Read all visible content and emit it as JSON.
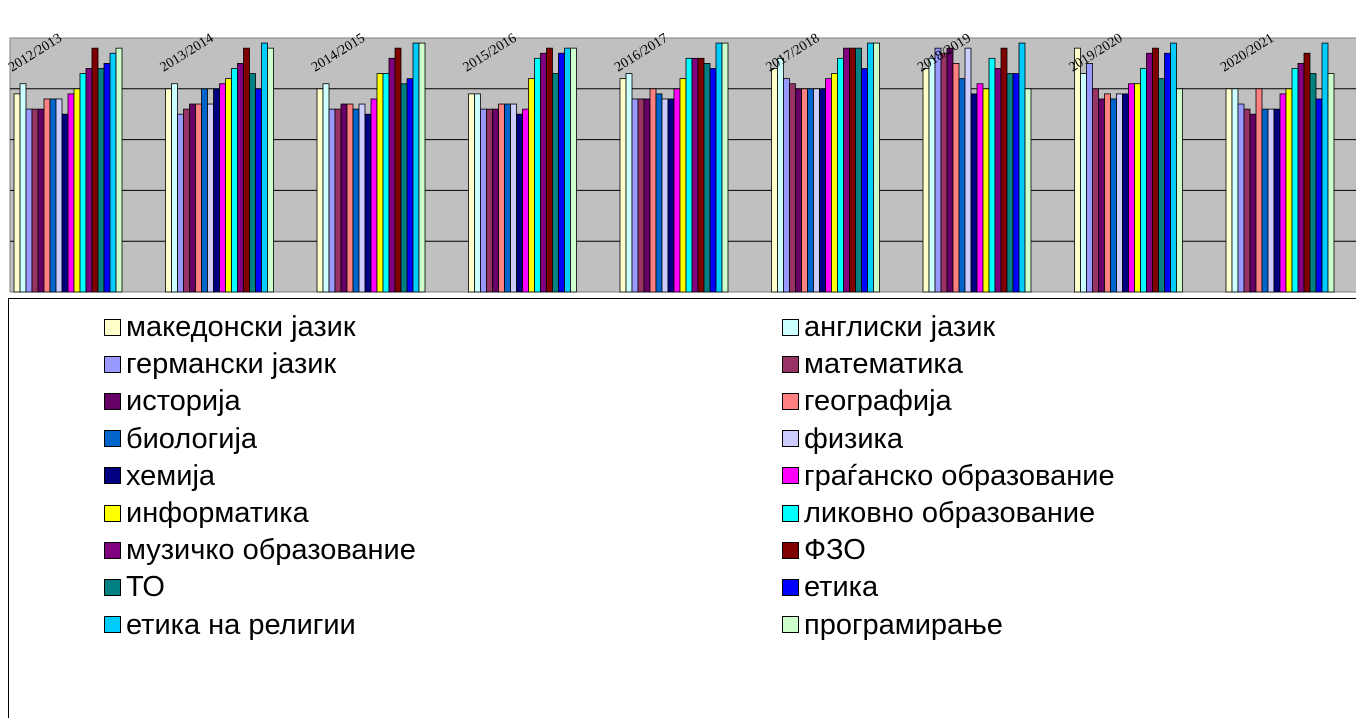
{
  "chart_data": {
    "type": "bar",
    "title": "",
    "xlabel": "",
    "ylabel": "",
    "ylim": [
      0,
      5
    ],
    "grid": true,
    "legend_position": "bottom",
    "plot_background": "#c0c0c0",
    "categories": [
      "2012/2013",
      "2013/2014",
      "2014/2015",
      "2015/2016",
      "2016/2017",
      "2017/2018",
      "2018/2019",
      "2019/2020",
      "2020/2021"
    ],
    "series": [
      {
        "name": "македонски јазик",
        "color": "#ffffcc",
        "values": [
          3.9,
          4.0,
          4.0,
          3.9,
          4.2,
          4.4,
          4.4,
          4.8,
          4.0
        ]
      },
      {
        "name": "англиски јазик",
        "color": "#ccffff",
        "values": [
          4.1,
          4.1,
          4.1,
          3.9,
          4.3,
          4.6,
          4.6,
          4.3,
          4.0
        ]
      },
      {
        "name": "германски јазик",
        "color": "#9999ff",
        "values": [
          3.6,
          3.5,
          3.6,
          3.6,
          3.8,
          4.2,
          4.8,
          4.5,
          3.7
        ]
      },
      {
        "name": "математика",
        "color": "#993366",
        "values": [
          3.6,
          3.6,
          3.6,
          3.6,
          3.8,
          4.1,
          4.7,
          4.0,
          3.6
        ]
      },
      {
        "name": "историја",
        "color": "#660066",
        "values": [
          3.6,
          3.7,
          3.7,
          3.6,
          3.8,
          4.0,
          4.8,
          3.8,
          3.5
        ]
      },
      {
        "name": "географија",
        "color": "#ff8080",
        "values": [
          3.8,
          3.7,
          3.7,
          3.7,
          4.0,
          4.0,
          4.5,
          3.9,
          4.0
        ]
      },
      {
        "name": "биологија",
        "color": "#0066cc",
        "values": [
          3.8,
          4.0,
          3.6,
          3.7,
          3.9,
          4.0,
          4.2,
          3.8,
          3.6
        ]
      },
      {
        "name": "физика",
        "color": "#ccccff",
        "values": [
          3.8,
          3.7,
          3.7,
          3.7,
          3.8,
          4.0,
          4.8,
          3.9,
          3.6
        ]
      },
      {
        "name": "хемија",
        "color": "#000080",
        "values": [
          3.5,
          4.0,
          3.5,
          3.5,
          3.8,
          4.0,
          3.9,
          3.9,
          3.6
        ]
      },
      {
        "name": "граѓанско образование",
        "color": "#ff00ff",
        "values": [
          3.9,
          4.1,
          3.8,
          3.6,
          4.0,
          4.2,
          4.1,
          4.1,
          3.9
        ]
      },
      {
        "name": "информатика",
        "color": "#ffff00",
        "values": [
          4.0,
          4.2,
          4.3,
          4.2,
          4.2,
          4.3,
          4.0,
          4.1,
          4.0
        ]
      },
      {
        "name": "ликовно образование",
        "color": "#00ffff",
        "values": [
          4.3,
          4.4,
          4.3,
          4.6,
          4.6,
          4.6,
          4.6,
          4.4,
          4.4
        ]
      },
      {
        "name": "музичко образование",
        "color": "#800080",
        "values": [
          4.4,
          4.5,
          4.6,
          4.7,
          4.6,
          4.8,
          4.4,
          4.7,
          4.5
        ]
      },
      {
        "name": "ФЗО",
        "color": "#800000",
        "values": [
          4.8,
          4.8,
          4.8,
          4.8,
          4.6,
          4.8,
          4.8,
          4.8,
          4.7
        ]
      },
      {
        "name": "ТО",
        "color": "#008080",
        "values": [
          4.4,
          4.3,
          4.1,
          4.3,
          4.5,
          4.8,
          4.3,
          4.2,
          4.3
        ]
      },
      {
        "name": "етика",
        "color": "#0000ff",
        "values": [
          4.5,
          4.0,
          4.2,
          4.7,
          4.4,
          4.4,
          4.3,
          4.7,
          3.8
        ]
      },
      {
        "name": "етика на религии",
        "color": "#00ccff",
        "values": [
          4.7,
          4.9,
          4.9,
          4.8,
          4.9,
          4.9,
          4.9,
          4.9,
          4.9
        ]
      },
      {
        "name": "програмирање",
        "color": "#ccffcc",
        "values": [
          4.8,
          4.8,
          4.9,
          4.8,
          4.9,
          4.9,
          4.0,
          4.0,
          4.3
        ]
      }
    ]
  }
}
